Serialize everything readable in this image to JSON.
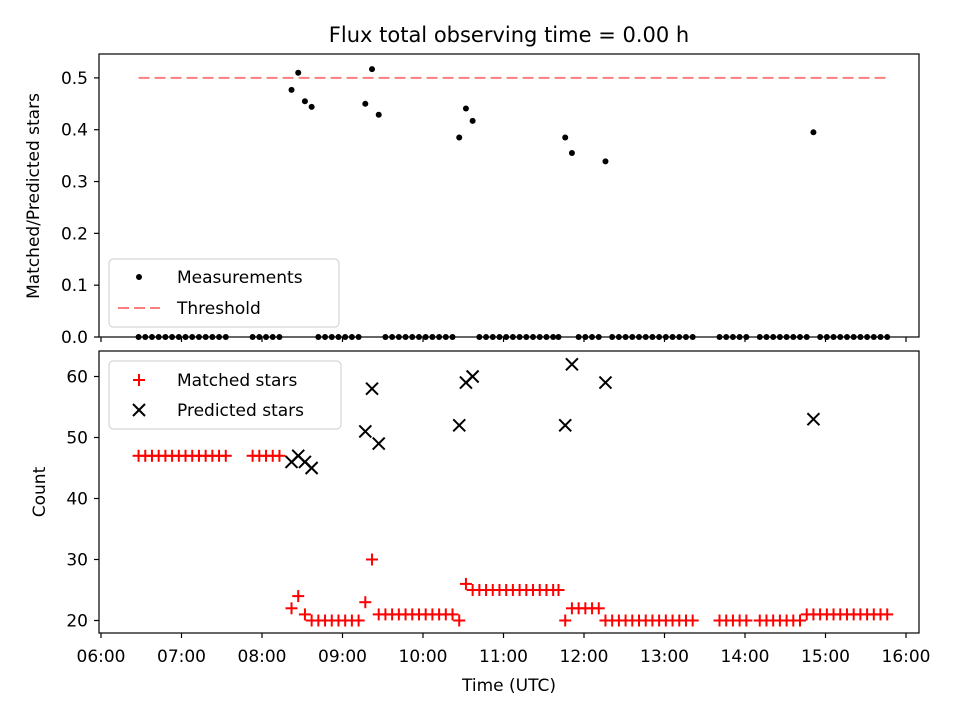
{
  "chart_data": [
    {
      "type": "scatter",
      "title": "Flux total observing time = 0.00 h",
      "xlabel": "",
      "ylabel": "Matched/Predicted stars",
      "ylim": [
        0,
        0.54
      ],
      "yticks": [
        "0.0",
        "0.1",
        "0.2",
        "0.3",
        "0.4",
        "0.5"
      ],
      "yticks_values": [
        0,
        0.1,
        0.2,
        0.3,
        0.4,
        0.5
      ],
      "grid": false,
      "legend": {
        "placement": "lower-left",
        "entries": [
          "Measurements",
          "Threshold"
        ]
      },
      "series": [
        {
          "name": "Measurements",
          "marker": "dot",
          "color": "#000000",
          "points": [
            [
              "06:28",
              0
            ],
            [
              "06:33",
              0
            ],
            [
              "06:38",
              0
            ],
            [
              "06:43",
              0
            ],
            [
              "06:48",
              0
            ],
            [
              "06:53",
              0
            ],
            [
              "06:58",
              0
            ],
            [
              "07:03",
              0
            ],
            [
              "07:08",
              0
            ],
            [
              "07:13",
              0
            ],
            [
              "07:18",
              0
            ],
            [
              "07:23",
              0
            ],
            [
              "07:28",
              0
            ],
            [
              "07:33",
              0
            ],
            [
              "07:53",
              0
            ],
            [
              "07:58",
              0
            ],
            [
              "08:03",
              0
            ],
            [
              "08:08",
              0
            ],
            [
              "08:13",
              0
            ],
            [
              "08:22",
              0.477
            ],
            [
              "08:27",
              0.51
            ],
            [
              "08:32",
              0.455
            ],
            [
              "08:37",
              0.444
            ],
            [
              "08:42",
              0
            ],
            [
              "08:47",
              0
            ],
            [
              "08:52",
              0
            ],
            [
              "08:57",
              0
            ],
            [
              "09:02",
              0
            ],
            [
              "09:07",
              0
            ],
            [
              "09:12",
              0
            ],
            [
              "09:17",
              0.45
            ],
            [
              "09:22",
              0.517
            ],
            [
              "09:27",
              0.429
            ],
            [
              "09:32",
              0
            ],
            [
              "09:37",
              0
            ],
            [
              "09:42",
              0
            ],
            [
              "09:47",
              0
            ],
            [
              "09:52",
              0
            ],
            [
              "09:57",
              0
            ],
            [
              "10:02",
              0
            ],
            [
              "10:07",
              0
            ],
            [
              "10:12",
              0
            ],
            [
              "10:17",
              0
            ],
            [
              "10:22",
              0
            ],
            [
              "10:27",
              0.385
            ],
            [
              "10:32",
              0.441
            ],
            [
              "10:37",
              0.417
            ],
            [
              "10:42",
              0
            ],
            [
              "10:47",
              0
            ],
            [
              "10:52",
              0
            ],
            [
              "10:57",
              0
            ],
            [
              "11:02",
              0
            ],
            [
              "11:07",
              0
            ],
            [
              "11:12",
              0
            ],
            [
              "11:17",
              0
            ],
            [
              "11:22",
              0
            ],
            [
              "11:27",
              0
            ],
            [
              "11:32",
              0
            ],
            [
              "11:37",
              0
            ],
            [
              "11:41",
              0
            ],
            [
              "11:46",
              0.385
            ],
            [
              "11:51",
              0.355
            ],
            [
              "11:56",
              0
            ],
            [
              "12:01",
              0
            ],
            [
              "12:06",
              0
            ],
            [
              "12:11",
              0
            ],
            [
              "12:16",
              0.339
            ],
            [
              "12:21",
              0
            ],
            [
              "12:26",
              0
            ],
            [
              "12:31",
              0
            ],
            [
              "12:36",
              0
            ],
            [
              "12:41",
              0
            ],
            [
              "12:46",
              0
            ],
            [
              "12:51",
              0
            ],
            [
              "12:56",
              0
            ],
            [
              "13:01",
              0
            ],
            [
              "13:06",
              0
            ],
            [
              "13:11",
              0
            ],
            [
              "13:16",
              0
            ],
            [
              "13:21",
              0
            ],
            [
              "13:41",
              0
            ],
            [
              "13:46",
              0
            ],
            [
              "13:51",
              0
            ],
            [
              "13:56",
              0
            ],
            [
              "14:01",
              0
            ],
            [
              "14:11",
              0
            ],
            [
              "14:16",
              0
            ],
            [
              "14:21",
              0
            ],
            [
              "14:26",
              0
            ],
            [
              "14:31",
              0
            ],
            [
              "14:36",
              0
            ],
            [
              "14:41",
              0
            ],
            [
              "14:46",
              0
            ],
            [
              "14:51",
              0.395
            ],
            [
              "14:56",
              0
            ],
            [
              "15:01",
              0
            ],
            [
              "15:06",
              0
            ],
            [
              "15:11",
              0
            ],
            [
              "15:16",
              0
            ],
            [
              "15:21",
              0
            ],
            [
              "15:26",
              0
            ],
            [
              "15:31",
              0
            ],
            [
              "15:36",
              0
            ],
            [
              "15:41",
              0
            ],
            [
              "15:46",
              0
            ]
          ]
        },
        {
          "name": "Threshold",
          "marker": "dashed-line",
          "color": "#ff7f7f",
          "x": [
            "06:28",
            "15:46"
          ],
          "y": [
            0.5,
            0.5
          ]
        }
      ]
    },
    {
      "type": "scatter",
      "title": "",
      "xlabel": "Time (UTC)",
      "ylabel": "Count",
      "ylim": [
        18,
        64.5
      ],
      "yticks": [
        "20",
        "30",
        "40",
        "50",
        "60"
      ],
      "yticks_values": [
        20,
        30,
        40,
        50,
        60
      ],
      "xlim": [
        "06:00",
        "16:10"
      ],
      "xticks": [
        "06:00",
        "07:00",
        "08:00",
        "09:00",
        "10:00",
        "11:00",
        "12:00",
        "13:00",
        "14:00",
        "15:00",
        "16:00"
      ],
      "grid": false,
      "legend": {
        "placement": "top-left",
        "entries": [
          "Matched stars",
          "Predicted stars"
        ]
      },
      "series": [
        {
          "name": "Matched stars",
          "marker": "plus",
          "color": "#ff0000",
          "points": [
            [
              "06:28",
              47
            ],
            [
              "06:33",
              47
            ],
            [
              "06:38",
              47
            ],
            [
              "06:43",
              47
            ],
            [
              "06:48",
              47
            ],
            [
              "06:53",
              47
            ],
            [
              "06:58",
              47
            ],
            [
              "07:03",
              47
            ],
            [
              "07:08",
              47
            ],
            [
              "07:13",
              47
            ],
            [
              "07:18",
              47
            ],
            [
              "07:23",
              47
            ],
            [
              "07:28",
              47
            ],
            [
              "07:33",
              47
            ],
            [
              "07:53",
              47
            ],
            [
              "07:58",
              47
            ],
            [
              "08:03",
              47
            ],
            [
              "08:08",
              47
            ],
            [
              "08:13",
              47
            ],
            [
              "08:22",
              22
            ],
            [
              "08:27",
              24
            ],
            [
              "08:32",
              21
            ],
            [
              "08:37",
              20
            ],
            [
              "08:42",
              20
            ],
            [
              "08:47",
              20
            ],
            [
              "08:52",
              20
            ],
            [
              "08:57",
              20
            ],
            [
              "09:02",
              20
            ],
            [
              "09:07",
              20
            ],
            [
              "09:12",
              20
            ],
            [
              "09:17",
              23
            ],
            [
              "09:22",
              30
            ],
            [
              "09:27",
              21
            ],
            [
              "09:32",
              21
            ],
            [
              "09:37",
              21
            ],
            [
              "09:42",
              21
            ],
            [
              "09:47",
              21
            ],
            [
              "09:52",
              21
            ],
            [
              "09:57",
              21
            ],
            [
              "10:02",
              21
            ],
            [
              "10:07",
              21
            ],
            [
              "10:12",
              21
            ],
            [
              "10:17",
              21
            ],
            [
              "10:22",
              21
            ],
            [
              "10:27",
              20
            ],
            [
              "10:32",
              26
            ],
            [
              "10:37",
              25
            ],
            [
              "10:42",
              25
            ],
            [
              "10:47",
              25
            ],
            [
              "10:52",
              25
            ],
            [
              "10:57",
              25
            ],
            [
              "11:02",
              25
            ],
            [
              "11:07",
              25
            ],
            [
              "11:12",
              25
            ],
            [
              "11:17",
              25
            ],
            [
              "11:22",
              25
            ],
            [
              "11:27",
              25
            ],
            [
              "11:32",
              25
            ],
            [
              "11:37",
              25
            ],
            [
              "11:41",
              25
            ],
            [
              "11:46",
              20
            ],
            [
              "11:51",
              22
            ],
            [
              "11:56",
              22
            ],
            [
              "12:01",
              22
            ],
            [
              "12:06",
              22
            ],
            [
              "12:11",
              22
            ],
            [
              "12:16",
              20
            ],
            [
              "12:21",
              20
            ],
            [
              "12:26",
              20
            ],
            [
              "12:31",
              20
            ],
            [
              "12:36",
              20
            ],
            [
              "12:41",
              20
            ],
            [
              "12:46",
              20
            ],
            [
              "12:51",
              20
            ],
            [
              "12:56",
              20
            ],
            [
              "13:01",
              20
            ],
            [
              "13:06",
              20
            ],
            [
              "13:11",
              20
            ],
            [
              "13:16",
              20
            ],
            [
              "13:21",
              20
            ],
            [
              "13:41",
              20
            ],
            [
              "13:46",
              20
            ],
            [
              "13:51",
              20
            ],
            [
              "13:56",
              20
            ],
            [
              "14:01",
              20
            ],
            [
              "14:11",
              20
            ],
            [
              "14:16",
              20
            ],
            [
              "14:21",
              20
            ],
            [
              "14:26",
              20
            ],
            [
              "14:31",
              20
            ],
            [
              "14:36",
              20
            ],
            [
              "14:41",
              20
            ],
            [
              "14:46",
              21
            ],
            [
              "14:51",
              21
            ],
            [
              "14:56",
              21
            ],
            [
              "15:01",
              21
            ],
            [
              "15:06",
              21
            ],
            [
              "15:11",
              21
            ],
            [
              "15:16",
              21
            ],
            [
              "15:21",
              21
            ],
            [
              "15:26",
              21
            ],
            [
              "15:31",
              21
            ],
            [
              "15:36",
              21
            ],
            [
              "15:41",
              21
            ],
            [
              "15:46",
              21
            ]
          ]
        },
        {
          "name": "Predicted stars",
          "marker": "x",
          "color": "#000000",
          "points": [
            [
              "08:22",
              46
            ],
            [
              "08:27",
              47
            ],
            [
              "08:32",
              46
            ],
            [
              "08:37",
              45
            ],
            [
              "09:17",
              51
            ],
            [
              "09:22",
              58
            ],
            [
              "09:27",
              49
            ],
            [
              "10:27",
              52
            ],
            [
              "10:32",
              59
            ],
            [
              "10:37",
              60
            ],
            [
              "11:46",
              52
            ],
            [
              "11:51",
              62
            ],
            [
              "12:16",
              59
            ],
            [
              "14:51",
              53
            ]
          ]
        }
      ]
    }
  ]
}
